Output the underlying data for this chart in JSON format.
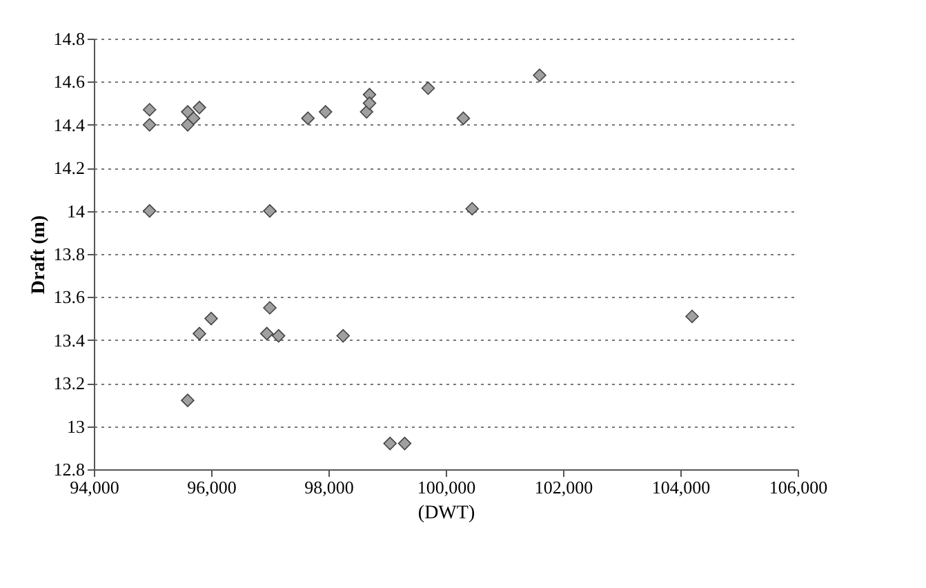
{
  "chart_data": {
    "type": "scatter",
    "xlabel": "(DWT)",
    "ylabel": "Draft (m)",
    "x": [
      94950,
      94950,
      94950,
      95600,
      95600,
      95800,
      95700,
      97650,
      97950,
      97000,
      97000,
      96000,
      95800,
      96950,
      97150,
      95600,
      98650,
      98700,
      98700,
      99700,
      101600,
      100300,
      100450,
      98250,
      99050,
      99300,
      104200
    ],
    "series": [
      {
        "color": "#a0a0a0",
        "values": [
          14.47,
          14.4,
          14.0,
          14.4,
          14.46,
          14.48,
          14.43,
          14.43,
          14.46,
          14.0,
          13.55,
          13.5,
          13.43,
          13.43,
          13.42,
          13.12,
          14.46,
          14.54,
          14.5,
          14.57,
          14.63,
          14.43,
          14.01,
          13.42,
          12.92,
          12.92,
          13.51
        ]
      }
    ],
    "xlim": [
      94000,
      106000
    ],
    "xticks": [
      {
        "value": 94000,
        "label": "94,000"
      },
      {
        "value": 96000,
        "label": "96,000"
      },
      {
        "value": 98000,
        "label": "98,000"
      },
      {
        "value": 100000,
        "label": "100,000"
      },
      {
        "value": 102000,
        "label": "102,000"
      },
      {
        "value": 104000,
        "label": "104,000"
      },
      {
        "value": 106000,
        "label": "106,000"
      }
    ],
    "ylim": [
      12.8,
      14.8
    ],
    "yticks": [
      12.8,
      13,
      13.2,
      13.4,
      13.6,
      13.8,
      14,
      14.2,
      14.4,
      14.6,
      14.8
    ],
    "grid": "y",
    "marker": "diamond"
  }
}
